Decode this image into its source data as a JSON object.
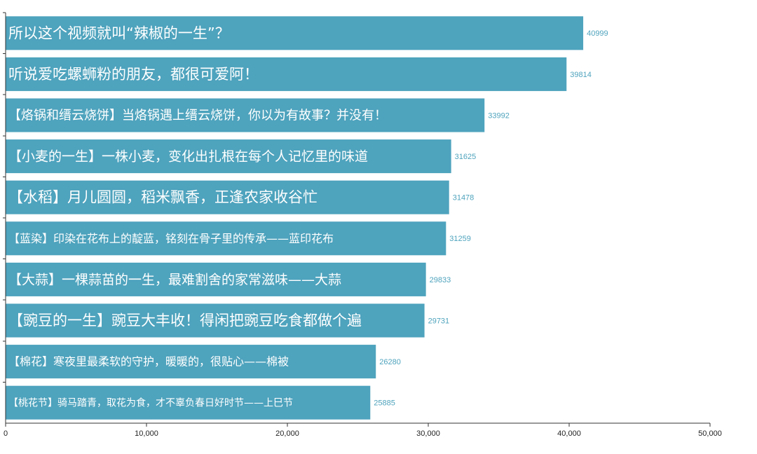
{
  "chart_data": {
    "type": "bar",
    "orientation": "horizontal",
    "title": "",
    "xlabel": "",
    "ylabel": "",
    "xlim": [
      0,
      50000
    ],
    "x_ticks": [
      0,
      10000,
      20000,
      30000,
      40000,
      50000
    ],
    "x_tick_labels": [
      "0",
      "10,000",
      "20,000",
      "30,000",
      "40,000",
      "50,000"
    ],
    "grid": false,
    "bar_color": "#4ea3bd",
    "label_color": "#4ea3bd",
    "categories": [
      "所以这个视频就叫“辣椒的一生”？",
      "听说爱吃螺蛳粉的朋友，都很可爱阿！",
      "【烙锅和缙云烧饼】当烙锅遇上缙云烧饼，你以为有故事？并没有！",
      "【小麦的一生】一株小麦，变化出扎根在每个人记忆里的味道",
      "【水稻】月儿圆圆，稻米飘香，正逢农家收谷忙",
      "【蓝染】印染在花布上的靛蓝，铭刻在骨子里的传承——蓝印花布",
      "【大蒜】一棵蒜苗的一生，最难割舍的家常滋味——大蒜",
      "【豌豆的一生】豌豆大丰收！得闲把豌豆吃食都做个遍",
      "【棉花】寒夜里最柔软的守护，暖暖的，很贴心——棉被",
      "【桃花节】骑马踏青，取花为食，才不辜负春日好时节——上巳节"
    ],
    "values": [
      40999,
      39814,
      33992,
      31625,
      31478,
      31259,
      29833,
      29731,
      26280,
      25885
    ],
    "value_labels": [
      "40999",
      "39814",
      "33992",
      "31625",
      "31478",
      "31259",
      "29833",
      "29731",
      "26280",
      "25885"
    ]
  }
}
